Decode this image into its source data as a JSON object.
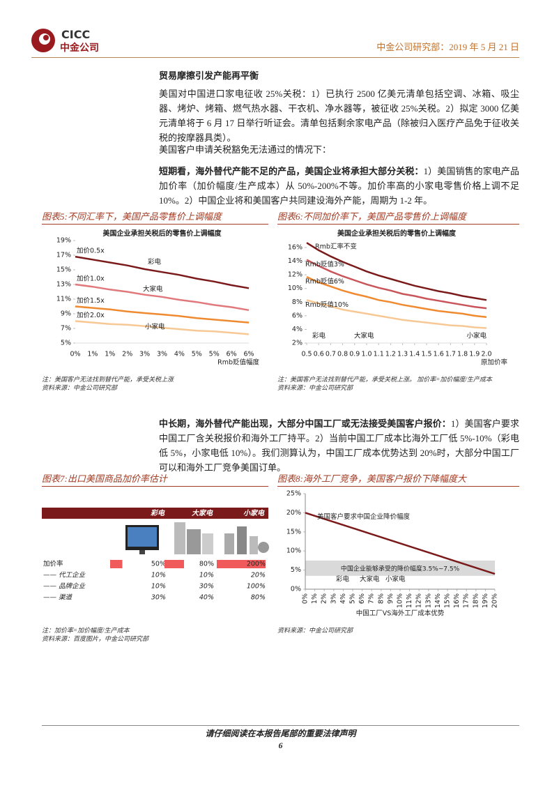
{
  "header": {
    "logo_en": "CICC",
    "logo_cn": "中金公司",
    "info": "中金公司研究部：2019 年 5 月 21 日"
  },
  "section_title": "贸易摩擦引发产能再平衡",
  "paragraphs": [
    {
      "text": "美国对中国进口家电征收 25%关税：1）已执行 2500 亿美元清单包括空调、冰箱、吸尘器、烤炉、烤箱、燃气热水器、干衣机、净水器等，被征收 25%关税。2）拟定 3000 亿美元清单将于 6 月 17 日举行听证会。清单包括剩余家电产品（除被归入医疗产品免于征收关税的按摩器具类）。"
    },
    {
      "text": "美国客户申请关税豁免无法通过的情况下："
    },
    {
      "bold": "短期看，海外替代产能不足的产品，美国企业将承担大部分关税：",
      "text": "1）美国销售的家电产品加价率（加价幅度/生产成本）从 50%-200%不等。加价率高的小家电零售价格上调不足 10%。2）中国企业将和美国客户共同建设海外产能，周期为 1-2 年。"
    },
    {
      "bold": "中长期，海外替代产能出现，大部分中国工厂或无法接受美国客户报价：",
      "text": "1）美国客户要求中国工厂含关税报价和海外工厂持平。2）当前中国工厂成本比海外工厂低 5%-10%（彩电低 5%，小家电低 10%）。我们测算认为，中国工厂成本优势达到 20%时，大部分中国工厂可以和海外工厂竞争美国订单。"
    }
  ],
  "figures": [
    {
      "title": "图表5:不同汇率下，美国产品零售价上调幅度",
      "notes": [
        "注：美国客户无法找到替代产能，承受关税上涨",
        "资料来源：中金公司研究部"
      ],
      "chart": {
        "type": "line",
        "title": "美国企业承担关税后的零售价上调幅度",
        "xlabel": "Rmb贬值幅度",
        "categories": [
          "0%",
          "1%",
          "1%",
          "2%",
          "3%",
          "3%",
          "4%",
          "5%",
          "5%",
          "6%",
          "6%"
        ],
        "ylim": [
          5,
          19
        ],
        "yticks": [
          {
            "value": 5,
            "label": "5%"
          },
          {
            "value": 7,
            "label": "7%"
          },
          {
            "value": 9,
            "label": "9%"
          },
          {
            "value": 11,
            "label": "11%"
          },
          {
            "value": 13,
            "label": "13%"
          },
          {
            "value": 15,
            "label": "15%"
          },
          {
            "value": 17,
            "label": "17%"
          },
          {
            "value": 19,
            "label": "19%"
          }
        ],
        "series": [
          {
            "name": "加价0.5x",
            "color": "#7b1a1a",
            "values": [
              16.8,
              16.4,
              16.0,
              15.6,
              15.1,
              14.7,
              14.3,
              13.8,
              13.4,
              12.9,
              12.5
            ]
          },
          {
            "name": "加价1.0x",
            "color": "#e0787c",
            "values": [
              13.0,
              12.7,
              12.3,
              12.0,
              11.6,
              11.3,
              10.9,
              10.6,
              10.2,
              9.9,
              9.5
            ]
          },
          {
            "name": "加价1.5x",
            "color": "#f08a30",
            "values": [
              10.0,
              9.8,
              9.6,
              9.3,
              9.1,
              8.9,
              8.7,
              8.4,
              8.2,
              8.0,
              7.8
            ]
          },
          {
            "name": "加价2.0x",
            "color": "#f8c894",
            "values": [
              8.0,
              7.8,
              7.6,
              7.5,
              7.3,
              7.1,
              6.9,
              6.7,
              6.6,
              6.4,
              6.2
            ]
          }
        ],
        "annotations": [
          "彩电",
          "大家电",
          "小家电"
        ]
      }
    },
    {
      "title": "图表6:不同加价率下，美国产品零售价上调幅度",
      "notes": [
        "注：美国客户无法找到替代产能，承受关税上涨。 加价率=加价幅度/生产成本",
        "资料来源：中金公司研究部"
      ],
      "chart": {
        "type": "line",
        "title": "美国企业承担关税后的零售价上调幅度",
        "xlabel": "原加价率",
        "x": [
          0.5,
          0.6,
          0.7,
          0.8,
          0.9,
          1,
          1.1,
          1.2,
          1.3,
          1.4,
          1.5,
          1.6,
          1.7,
          1.8,
          1.9,
          2
        ],
        "xlim": [
          0.5,
          2
        ],
        "xticks": [
          0.5,
          0.6,
          0.7,
          0.8,
          0.9,
          {
            "value": 1,
            "label": "1.0"
          },
          1.1,
          1.2,
          1.3,
          1.4,
          1.5,
          1.6,
          1.7,
          1.8,
          1.9,
          {
            "value": 2,
            "label": "2.0"
          }
        ],
        "ylim": [
          2,
          16
        ],
        "yticks": [
          {
            "value": 2,
            "label": "2%"
          },
          {
            "value": 4,
            "label": "4%"
          },
          {
            "value": 6,
            "label": "6%"
          },
          {
            "value": 8,
            "label": "8%"
          },
          {
            "value": 10,
            "label": "10%"
          },
          {
            "value": 12,
            "label": "12%"
          },
          {
            "value": 14,
            "label": "14%"
          },
          {
            "value": 16,
            "label": "16%"
          }
        ],
        "series": [
          {
            "name": "Rmb汇率不变",
            "color": "#7b1a1a",
            "values": [
              16.7,
              15.6,
              14.7,
              13.9,
              13.2,
              12.5,
              11.9,
              11.4,
              10.9,
              10.4,
              10.0,
              9.6,
              9.3,
              8.9,
              8.6,
              8.3
            ]
          },
          {
            "name": "Rmb贬值3%",
            "color": "#c9555a",
            "values": [
              14.2,
              13.3,
              12.5,
              11.8,
              11.2,
              10.6,
              10.1,
              9.7,
              9.2,
              8.9,
              8.5,
              8.2,
              7.9,
              7.6,
              7.3,
              7.1
            ]
          },
          {
            "name": "Rmb贬值6%",
            "color": "#f08a30",
            "values": [
              11.7,
              10.9,
              10.3,
              9.7,
              9.2,
              8.8,
              8.3,
              8.0,
              7.6,
              7.3,
              7.0,
              6.7,
              6.5,
              6.3,
              6.0,
              5.8
            ]
          },
          {
            "name": "Rmb贬值10%",
            "color": "#f8c894",
            "values": [
              8.3,
              7.8,
              7.4,
              6.9,
              6.6,
              6.3,
              6.0,
              5.7,
              5.4,
              5.2,
              5.0,
              4.8,
              4.6,
              4.5,
              4.3,
              4.2
            ]
          }
        ],
        "annotations": [
          "彩电",
          "大家电",
          "小家电"
        ]
      }
    },
    {
      "title": "图表7:出口美国商品加价率估计",
      "notes": [
        "注：加价率=加价幅度/生产成本",
        "资料来源：百度图片，中金公司研究部"
      ],
      "table": {
        "columns": [
          "彩电",
          "大家电",
          "小家电"
        ],
        "markup_row": {
          "label": "加价率",
          "values": [
            50,
            80,
            200
          ],
          "value_labels": [
            "50%",
            "80%",
            "200%"
          ],
          "color": "#f05a5a"
        },
        "rows": [
          {
            "label": "—— 代工企业",
            "cells": [
              "10%",
              "10%",
              "20%"
            ]
          },
          {
            "label": "—— 品牌企业",
            "cells": [
              "10%",
              "30%",
              "100%"
            ]
          },
          {
            "label": "—— 渠道",
            "cells": [
              "30%",
              "40%",
              "80%"
            ]
          }
        ]
      }
    },
    {
      "title": "图表8:海外工厂竞争，美国客户报价下降幅度大",
      "notes": [
        "资料来源：中金公司研究部"
      ],
      "chart": {
        "type": "line",
        "xlabel": "中国工厂VS海外工厂成本优势",
        "x": [
          0,
          20
        ],
        "xlim": [
          0,
          20
        ],
        "xticks": [
          {
            "value": 0,
            "label": "0%"
          },
          {
            "value": 1,
            "label": "1%"
          },
          {
            "value": 2,
            "label": "2%"
          },
          {
            "value": 3,
            "label": "3%"
          },
          {
            "value": 4,
            "label": "4%"
          },
          {
            "value": 5,
            "label": "5%"
          },
          {
            "value": 6,
            "label": "6%"
          },
          {
            "value": 7,
            "label": "7%"
          },
          {
            "value": 8,
            "label": "8%"
          },
          {
            "value": 9,
            "label": "9%"
          },
          {
            "value": 10,
            "label": "10%"
          },
          {
            "value": 11,
            "label": "11%"
          },
          {
            "value": 12,
            "label": "12%"
          },
          {
            "value": 13,
            "label": "13%"
          },
          {
            "value": 14,
            "label": "14%"
          },
          {
            "value": 15,
            "label": "15%"
          },
          {
            "value": 16,
            "label": "16%"
          },
          {
            "value": 17,
            "label": "17%"
          },
          {
            "value": 18,
            "label": "18%"
          },
          {
            "value": 19,
            "label": "19%"
          },
          {
            "value": 20,
            "label": "20%"
          }
        ],
        "ylim": [
          0,
          25
        ],
        "yticks": [
          {
            "value": 0,
            "label": "0%"
          },
          {
            "value": 5,
            "label": "5%"
          },
          {
            "value": 10,
            "label": "10%"
          },
          {
            "value": 15,
            "label": "15%"
          },
          {
            "value": 20,
            "label": "20%"
          },
          {
            "value": 25,
            "label": "25%"
          }
        ],
        "series": [
          {
            "name": "美国客户要求中国企业降价幅度",
            "color": "#7b1a1a",
            "values": [
              20,
              4
            ]
          }
        ],
        "band": {
          "label": "中国企业能够承受的降价幅度3.5%~7.5%",
          "range": [
            3.5,
            7.5
          ],
          "color": "#d9d9d9"
        },
        "annotations": [
          "彩电",
          "大家电",
          "小家电"
        ]
      }
    }
  ],
  "footer": {
    "disclaimer": "请仔细阅读在本报告尾部的重要法律声明",
    "page": 6
  }
}
